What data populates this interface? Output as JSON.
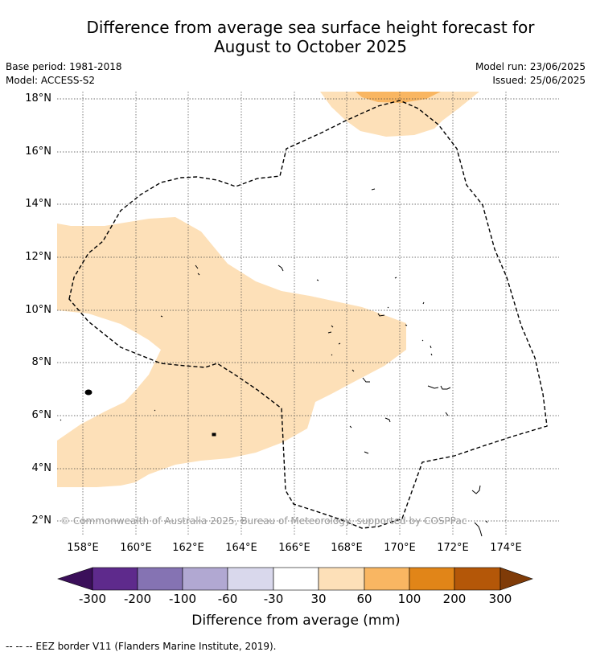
{
  "title_line1": "Difference from average sea surface height forecast for",
  "title_line2": "August to October 2025",
  "meta": {
    "base_period": "Base period: 1981-2018",
    "model": "Model: ACCESS-S2",
    "model_run": "Model run: 23/06/2025",
    "issued": "Issued: 25/06/2025"
  },
  "map": {
    "lat_ticks": [
      "18°N",
      "16°N",
      "14°N",
      "12°N",
      "10°N",
      "8°N",
      "6°N",
      "4°N",
      "2°N"
    ],
    "lon_ticks": [
      "158°E",
      "160°E",
      "162°E",
      "164°E",
      "166°E",
      "168°E",
      "170°E",
      "172°E",
      "174°E"
    ],
    "copyright": "© Commonwealth of Australia 2025, Bureau of Meteorology, supported by COSPPac"
  },
  "colorbar": {
    "ticks": [
      "-300",
      "-200",
      "-100",
      "-60",
      "-30",
      "30",
      "60",
      "100",
      "200",
      "300"
    ],
    "colors": [
      "#3b0f5a",
      "#5e2a8c",
      "#8573b3",
      "#b1a8d2",
      "#d9d8ec",
      "#ffffff",
      "#fde0b8",
      "#f9b662",
      "#e18518",
      "#b45708",
      "#7f3b08"
    ],
    "label": "Difference from average (mm)"
  },
  "legend_note": "-- -- -- EEZ border V11 (Flanders Marine Institute, 2019)."
}
